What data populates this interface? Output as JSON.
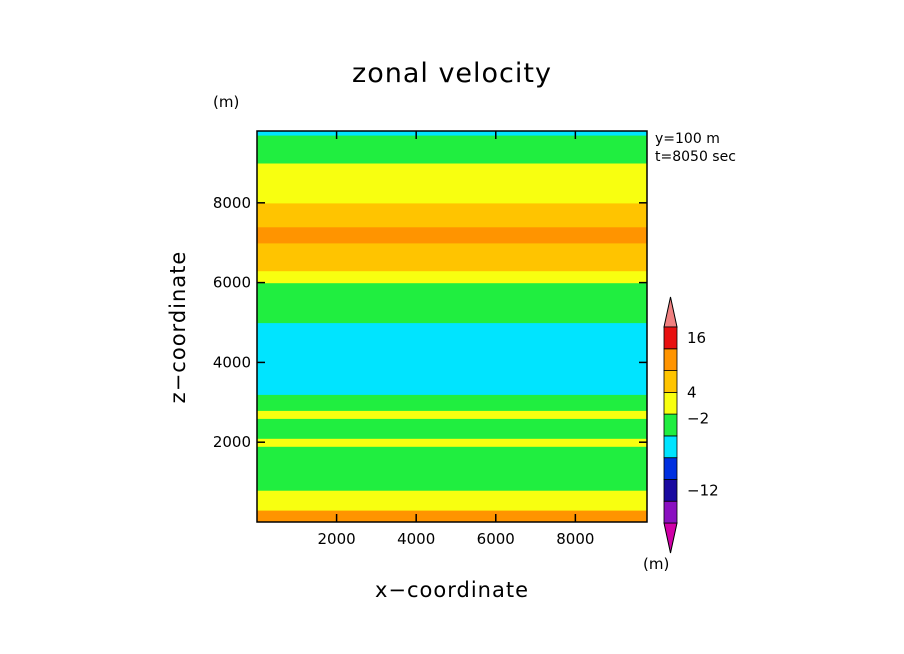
{
  "chart_data": {
    "type": "heatmap",
    "title": "zonal velocity",
    "xlabel": "x−coordinate",
    "ylabel": "z−coordinate",
    "y_unit": "(m)",
    "colorbar_unit": "(m)",
    "annotations": [
      "y=100  m",
      "t=8050 sec"
    ],
    "xlim": [
      0,
      9800
    ],
    "ylim": [
      0,
      9800
    ],
    "x_ticks": [
      2000,
      4000,
      6000,
      8000
    ],
    "y_ticks": [
      2000,
      4000,
      6000,
      8000
    ],
    "colorbar": {
      "levels": [
        {
          "color": "#d000a8"
        },
        {
          "color": "#8a10c0"
        },
        {
          "color": "#1a0aa0"
        },
        {
          "color": "#0030e0"
        },
        {
          "color": "#00e4ff"
        },
        {
          "color": "#20ee40"
        },
        {
          "color": "#f8ff10"
        },
        {
          "color": "#ffc400"
        },
        {
          "color": "#ff9400"
        },
        {
          "color": "#e81010"
        },
        {
          "color": "#f08080"
        }
      ],
      "tick_labels": [
        {
          "value": "16",
          "boundary": 9.5
        },
        {
          "value": "4",
          "boundary": 7
        },
        {
          "value": "−2",
          "boundary": 5.8
        },
        {
          "value": "−12",
          "boundary": 2.5
        }
      ]
    },
    "bands": [
      {
        "z": [
          0,
          300
        ],
        "band": "orange"
      },
      {
        "z": [
          300,
          800
        ],
        "band": "yellow"
      },
      {
        "z": [
          800,
          1900
        ],
        "band": "green"
      },
      {
        "z": [
          1900,
          2100
        ],
        "band": "yellow"
      },
      {
        "z": [
          2100,
          2600
        ],
        "band": "green"
      },
      {
        "z": [
          2600,
          2800
        ],
        "band": "yellow"
      },
      {
        "z": [
          2800,
          3200
        ],
        "band": "green"
      },
      {
        "z": [
          3200,
          5000
        ],
        "band": "cyan"
      },
      {
        "z": [
          5000,
          6000
        ],
        "band": "green"
      },
      {
        "z": [
          6000,
          6300
        ],
        "band": "yellow"
      },
      {
        "z": [
          6300,
          7000
        ],
        "band": "lightorange"
      },
      {
        "z": [
          7000,
          7400
        ],
        "band": "orange"
      },
      {
        "z": [
          7400,
          8000
        ],
        "band": "lightorange"
      },
      {
        "z": [
          8000,
          9000
        ],
        "band": "yellow"
      },
      {
        "z": [
          9000,
          9700
        ],
        "band": "green"
      },
      {
        "z": [
          9700,
          9800
        ],
        "band": "cyan"
      }
    ]
  }
}
